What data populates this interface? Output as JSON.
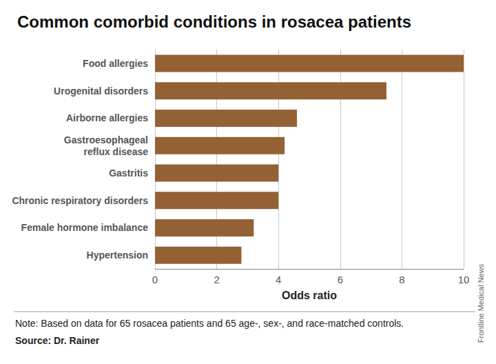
{
  "chart_data": {
    "type": "bar",
    "orientation": "horizontal",
    "title": "Common comorbid conditions in rosacea patients",
    "xlabel": "Odds ratio",
    "categories": [
      "Food allergies",
      "Urogenital disorders",
      "Airborne allergies",
      "Gastroesophageal\nreflux disease",
      "Gastritis",
      "Chronic respiratory disorders",
      "Female hormone imbalance",
      "Hypertension"
    ],
    "values": [
      10,
      7.5,
      4.6,
      4.2,
      4.0,
      4.0,
      3.2,
      2.8
    ],
    "color": "#946135",
    "xlim": [
      0,
      10
    ],
    "xticks": [
      0,
      2,
      4,
      6,
      8,
      10
    ],
    "grid": true,
    "note": "Note: Based on data for 65 rosacea patients and 65 age-, sex-, and race-matched controls.",
    "source": "Source: Dr. Rainer",
    "credit": "Frontline Medical News"
  }
}
